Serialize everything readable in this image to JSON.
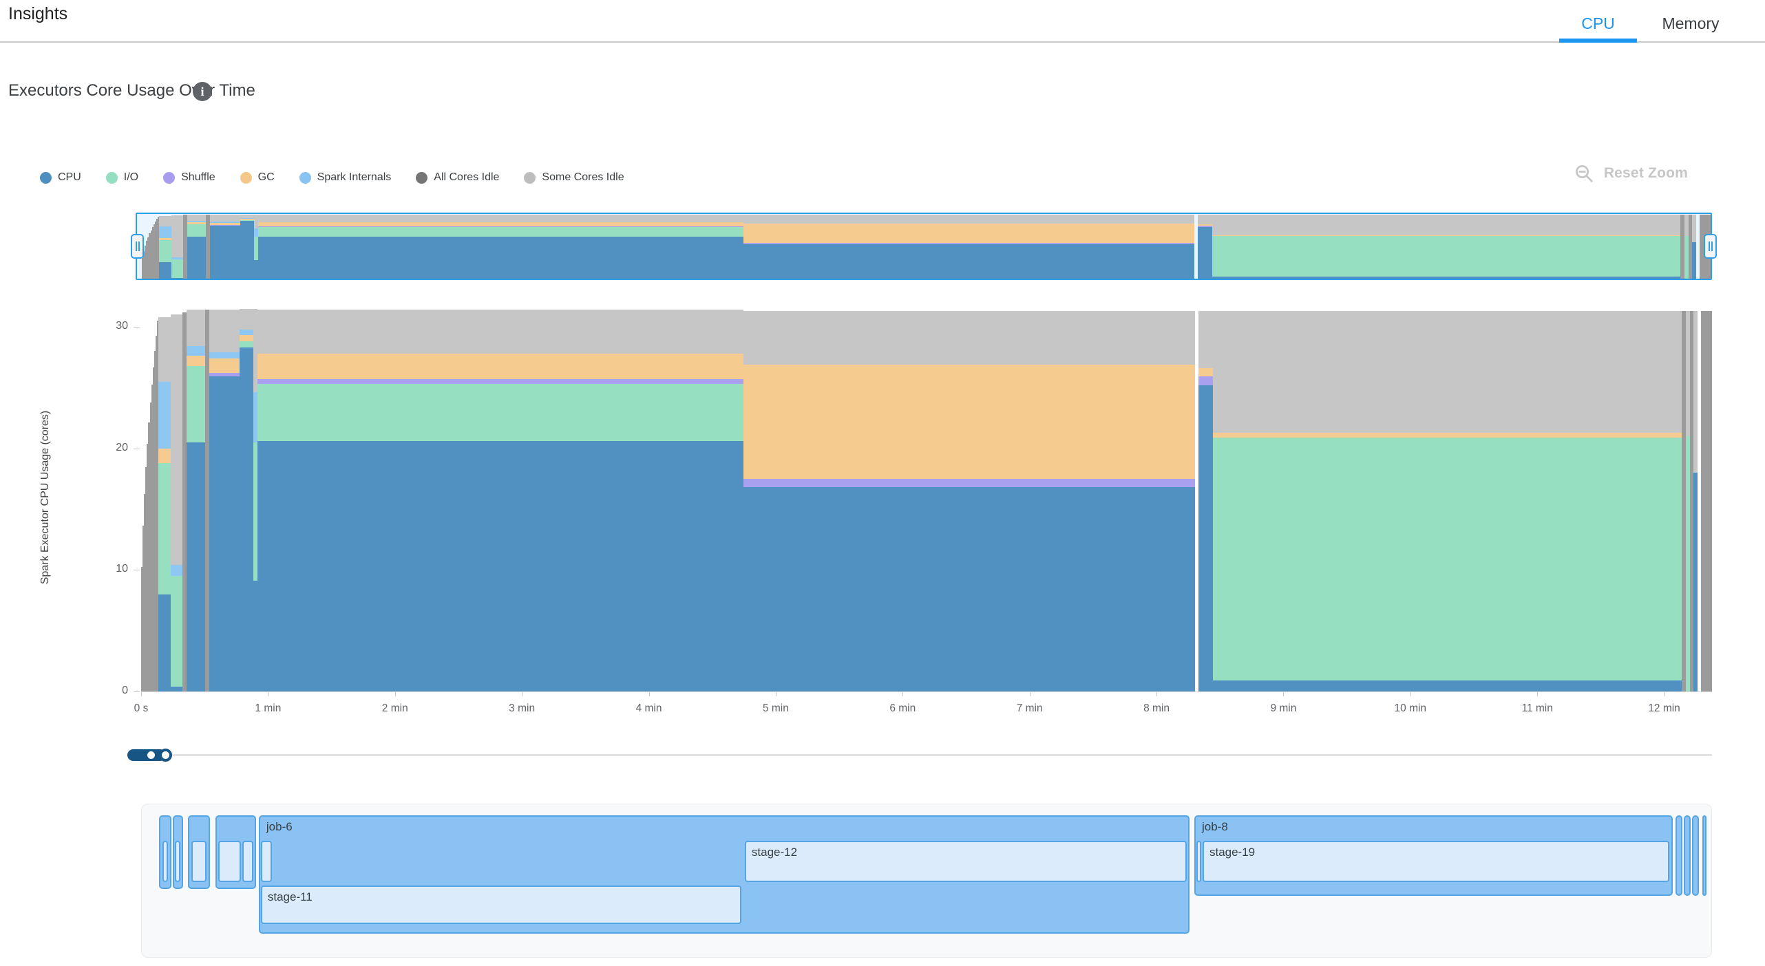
{
  "header": {
    "title": "Insights",
    "tabs": [
      {
        "label": "CPU",
        "active": true
      },
      {
        "label": "Memory",
        "active": false
      }
    ]
  },
  "section": {
    "title": "Executors Core Usage Over Time"
  },
  "toolbar": {
    "reset_zoom_label": "Reset Zoom"
  },
  "legend": [
    {
      "label": "CPU",
      "color": "#4f8fbf"
    },
    {
      "label": "I/O",
      "color": "#93dfbf"
    },
    {
      "label": "Shuffle",
      "color": "#a79ced"
    },
    {
      "label": "GC",
      "color": "#f4c888"
    },
    {
      "label": "Spark Internals",
      "color": "#88c3f1"
    },
    {
      "label": "All Cores Idle",
      "color": "#757575"
    },
    {
      "label": "Some Cores Idle",
      "color": "#bdbdbd"
    }
  ],
  "colors": {
    "cpu": "#5191c1",
    "io": "#96e0c1",
    "shuffle": "#a9a0ef",
    "gc": "#f5cb90",
    "internals": "#8ec7f2",
    "all_idle": "#9b9b9b",
    "some_idle": "#c6c6c6",
    "accent_blue": "#1b95f2",
    "brush_blue": "#2b9fe9",
    "slider_navy": "#175684",
    "job_fill": "#8ac3f3",
    "job_border": "#55a5e4",
    "stage_fill": "#dcebfb"
  },
  "chart_data": {
    "type": "area",
    "title": "Executors Core Usage Over Time",
    "ylabel": "Spark Executor CPU Usage (cores)",
    "ylim": [
      0,
      31.7
    ],
    "yticks": [
      0,
      10,
      20,
      30
    ],
    "xticks": [
      "0 s",
      "1 min",
      "2 min",
      "3 min",
      "4 min",
      "5 min",
      "6 min",
      "7 min",
      "8 min",
      "9 min",
      "10 min",
      "11 min",
      "12 min"
    ],
    "x_minutes_per_tick": 1,
    "x_total_min": 12.376,
    "grid": false,
    "legend_position": "top-left",
    "series_order": [
      "cpu",
      "io",
      "shuffle",
      "gc",
      "internals",
      "all_idle",
      "some_idle"
    ],
    "segments": [
      {
        "t0": 0.0,
        "t1": 0.136,
        "ramp": {
          "series": "all_idle",
          "from": 2,
          "to": 30.5,
          "steps": 12
        }
      },
      {
        "t0": 0.136,
        "t1": 0.233,
        "layers": [
          [
            "cpu",
            0,
            8
          ],
          [
            "io",
            8,
            18.8
          ],
          [
            "gc",
            18.8,
            20
          ],
          [
            "internals",
            20,
            25.5
          ],
          [
            "some_idle",
            25.5,
            30.8
          ]
        ]
      },
      {
        "t0": 0.233,
        "t1": 0.325,
        "layers": [
          [
            "cpu",
            0,
            0.4
          ],
          [
            "io",
            0.4,
            9.5
          ],
          [
            "internals",
            9.5,
            10.4
          ],
          [
            "some_idle",
            10.4,
            31.0
          ]
        ]
      },
      {
        "t0": 0.325,
        "t1": 0.358,
        "layers": [
          [
            "all_idle",
            0,
            31.2
          ]
        ]
      },
      {
        "t0": 0.358,
        "t1": 0.504,
        "layers": [
          [
            "cpu",
            0,
            20.5
          ],
          [
            "io",
            20.5,
            26.8
          ],
          [
            "gc",
            26.8,
            27.6
          ],
          [
            "internals",
            27.6,
            28.4
          ],
          [
            "some_idle",
            28.4,
            31.4
          ]
        ]
      },
      {
        "t0": 0.504,
        "t1": 0.537,
        "layers": [
          [
            "all_idle",
            0,
            31.4
          ]
        ]
      },
      {
        "t0": 0.537,
        "t1": 0.775,
        "layers": [
          [
            "cpu",
            0,
            25.9
          ],
          [
            "shuffle",
            25.9,
            26.2
          ],
          [
            "gc",
            26.2,
            27.4
          ],
          [
            "internals",
            27.4,
            27.9
          ],
          [
            "some_idle",
            27.9,
            31.4
          ]
        ]
      },
      {
        "t0": 0.775,
        "t1": 0.884,
        "layers": [
          [
            "cpu",
            0,
            28.3
          ],
          [
            "io",
            28.3,
            28.8
          ],
          [
            "gc",
            28.8,
            29.3
          ],
          [
            "internals",
            29.3,
            29.8
          ],
          [
            "some_idle",
            29.8,
            31.5
          ]
        ]
      },
      {
        "t0": 0.884,
        "t1": 0.916,
        "layers": [
          [
            "cpu",
            0,
            9.1
          ],
          [
            "io",
            9.1,
            20.5
          ],
          [
            "internals",
            20.5,
            24.6
          ],
          [
            "some_idle",
            24.6,
            31.5
          ]
        ]
      },
      {
        "t0": 0.916,
        "t1": 4.745,
        "layers": [
          [
            "cpu",
            0,
            20.6
          ],
          [
            "io",
            20.6,
            25.3
          ],
          [
            "shuffle",
            25.3,
            25.7
          ],
          [
            "gc",
            25.7,
            27.8
          ],
          [
            "some_idle",
            27.8,
            31.4
          ]
        ]
      },
      {
        "t0": 4.745,
        "t1": 8.303,
        "layers": [
          [
            "cpu",
            0,
            16.8
          ],
          [
            "shuffle",
            16.8,
            17.5
          ],
          [
            "gc",
            17.5,
            26.9
          ],
          [
            "some_idle",
            26.9,
            31.3
          ]
        ]
      },
      {
        "t0": 8.303,
        "t1": 8.33,
        "layers": []
      },
      {
        "t0": 8.33,
        "t1": 8.444,
        "layers": [
          [
            "cpu",
            0,
            25.2
          ],
          [
            "shuffle",
            25.2,
            25.9
          ],
          [
            "gc",
            25.9,
            26.6
          ],
          [
            "some_idle",
            26.6,
            31.3
          ]
        ]
      },
      {
        "t0": 8.444,
        "t1": 12.137,
        "layers": [
          [
            "cpu",
            0,
            0.9
          ],
          [
            "io",
            0.9,
            20.9
          ],
          [
            "gc",
            20.9,
            21.3
          ],
          [
            "some_idle",
            21.3,
            31.3
          ]
        ]
      },
      {
        "t0": 12.137,
        "t1": 12.17,
        "layers": [
          [
            "all_idle",
            0,
            31.3
          ]
        ]
      },
      {
        "t0": 12.17,
        "t1": 12.2,
        "layers": [
          [
            "io",
            0,
            21
          ],
          [
            "some_idle",
            21,
            31.3
          ]
        ]
      },
      {
        "t0": 12.2,
        "t1": 12.23,
        "layers": [
          [
            "all_idle",
            0,
            31.3
          ]
        ]
      },
      {
        "t0": 12.23,
        "t1": 12.26,
        "layers": [
          [
            "cpu",
            0,
            18
          ],
          [
            "some_idle",
            18,
            31.3
          ]
        ]
      },
      {
        "t0": 12.26,
        "t1": 12.29,
        "layers": []
      },
      {
        "t0": 12.29,
        "t1": 12.376,
        "layers": [
          [
            "all_idle",
            0,
            31.3
          ]
        ]
      }
    ]
  },
  "timeline": {
    "jobs": [
      {
        "label": "",
        "t0": 0.141,
        "t1": 0.239,
        "kind": "s",
        "stages": [
          {
            "label": "",
            "row": 1,
            "t0": 0.168,
            "t1": 0.212
          }
        ]
      },
      {
        "label": "",
        "t0": 0.249,
        "t1": 0.331,
        "kind": "s",
        "stages": [
          {
            "label": "",
            "row": 1,
            "t0": 0.266,
            "t1": 0.31
          }
        ]
      },
      {
        "label": "",
        "t0": 0.369,
        "t1": 0.542,
        "kind": "s",
        "stages": [
          {
            "label": "",
            "row": 1,
            "t0": 0.396,
            "t1": 0.515
          }
        ]
      },
      {
        "label": "",
        "t0": 0.586,
        "t1": 0.906,
        "kind": "s",
        "stages": [
          {
            "label": "",
            "row": 1,
            "t0": 0.607,
            "t1": 0.786
          },
          {
            "label": "",
            "row": 1,
            "t0": 0.797,
            "t1": 0.884
          }
        ]
      },
      {
        "label": "job-6",
        "t0": 0.927,
        "t1": 8.26,
        "kind": "l",
        "stages": [
          {
            "label": "",
            "row": 1,
            "t0": 0.943,
            "t1": 1.03
          },
          {
            "label": "stage-12",
            "row": 1,
            "t0": 4.756,
            "t1": 8.238
          },
          {
            "label": "stage-11",
            "row": 2,
            "t0": 0.943,
            "t1": 4.729
          }
        ]
      },
      {
        "label": "job-8",
        "t0": 8.298,
        "t1": 12.07,
        "kind": "m",
        "stages": [
          {
            "label": "",
            "row": 1,
            "t0": 8.315,
            "t1": 8.352
          },
          {
            "label": "stage-19",
            "row": 1,
            "t0": 8.363,
            "t1": 12.04
          }
        ]
      },
      {
        "label": "",
        "t0": 12.09,
        "t1": 12.145,
        "kind": "m",
        "stages": []
      },
      {
        "label": "",
        "t0": 12.155,
        "t1": 12.21,
        "kind": "m",
        "stages": []
      },
      {
        "label": "",
        "t0": 12.22,
        "t1": 12.275,
        "kind": "m",
        "stages": []
      },
      {
        "label": "",
        "t0": 12.3,
        "t1": 12.33,
        "kind": "m",
        "stages": []
      }
    ]
  }
}
